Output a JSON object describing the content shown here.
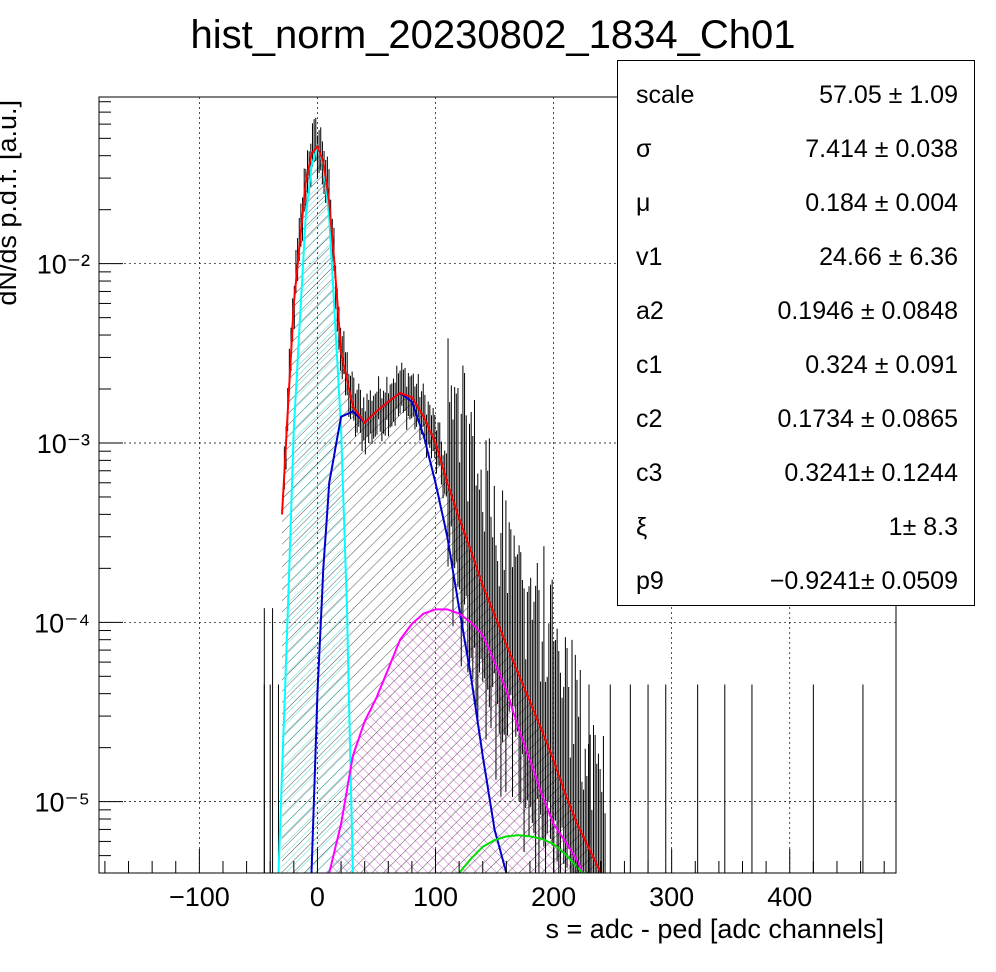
{
  "chart_data": {
    "type": "line",
    "title": "hist_norm_20230802_1834_Ch01",
    "xlabel": "s = adc - ped [adc channels]",
    "ylabel": "dN/ds p.d.f. [a.u.]",
    "xlim": [
      -185,
      490
    ],
    "ylim": [
      4e-06,
      0.085
    ],
    "y_log": true,
    "grid": true,
    "x_ticks": [
      -100,
      0,
      100,
      200,
      300,
      400
    ],
    "x_tick_labels": [
      "−100",
      "0",
      "100",
      "200",
      "300",
      "400"
    ],
    "y_ticks": [
      1e-05,
      0.0001,
      0.001,
      0.01
    ],
    "y_tick_labels": [
      "10⁻⁵",
      "10⁻⁴",
      "10⁻³",
      "10⁻²"
    ],
    "series": [
      {
        "color": "#ff0000",
        "x": [
          -30,
          -20,
          -10,
          -5,
          0,
          5,
          10,
          15,
          20,
          30,
          40,
          50,
          60,
          70,
          80,
          90,
          100,
          110,
          120,
          130,
          140,
          150,
          160,
          170,
          180,
          190,
          200,
          210,
          220,
          230,
          240
        ],
        "y": [
          0.0004,
          0.006,
          0.028,
          0.041,
          0.045,
          0.037,
          0.022,
          0.009,
          0.0032,
          0.0016,
          0.0013,
          0.0015,
          0.0017,
          0.0019,
          0.0018,
          0.0014,
          0.001,
          0.0006,
          0.00038,
          0.00025,
          0.00016,
          0.00011,
          7.5e-05,
          5.2e-05,
          3.6e-05,
          2.5e-05,
          1.7e-05,
          1.1e-05,
          7.5e-06,
          5.5e-06,
          4e-06
        ]
      },
      {
        "color": "#00ffff",
        "x": [
          -33,
          -25,
          -20,
          -10,
          -5,
          0,
          5,
          10,
          20,
          25,
          30
        ],
        "y": [
          4e-06,
          0.00012,
          0.0012,
          0.018,
          0.035,
          0.045,
          0.036,
          0.018,
          0.0012,
          0.00012,
          4e-06
        ]
      },
      {
        "color": "#0000cc",
        "x": [
          -5,
          0,
          5,
          10,
          20,
          30,
          40,
          50,
          60,
          70,
          80,
          90,
          100,
          110,
          120,
          130,
          140,
          150,
          160
        ],
        "y": [
          4e-06,
          4e-05,
          0.0002,
          0.0006,
          0.0014,
          0.0015,
          0.0013,
          0.0015,
          0.0017,
          0.0019,
          0.0017,
          0.0011,
          0.0006,
          0.0003,
          0.00012,
          5e-05,
          1.8e-05,
          7e-06,
          4e-06
        ]
      },
      {
        "color": "#ff00ff",
        "x": [
          10,
          20,
          30,
          40,
          50,
          60,
          70,
          80,
          90,
          100,
          110,
          120,
          130,
          140,
          150,
          160,
          170,
          180,
          190,
          200,
          210,
          220,
          225
        ],
        "y": [
          4e-06,
          7.5e-06,
          1.8e-05,
          2.8e-05,
          3.8e-05,
          5.5e-05,
          8e-05,
          9.8e-05,
          0.000112,
          0.000118,
          0.000118,
          0.000112,
          0.0001,
          8.5e-05,
          6e-05,
          4.2e-05,
          2.6e-05,
          1.7e-05,
          1.1e-05,
          7.5e-06,
          6e-06,
          4.7e-06,
          4e-06
        ]
      },
      {
        "color": "#00dd00",
        "x": [
          120,
          130,
          140,
          150,
          160,
          170,
          180,
          190,
          200,
          210,
          220,
          225
        ],
        "y": [
          4e-06,
          4.8e-06,
          5.6e-06,
          6.1e-06,
          6.4e-06,
          6.5e-06,
          6.4e-06,
          6.2e-06,
          5.8e-06,
          5.1e-06,
          4.3e-06,
          4e-06
        ]
      }
    ]
  },
  "stats": [
    {
      "name": "scale",
      "value": "57.05 ± 1.09"
    },
    {
      "name": "σ",
      "value": "7.414 ± 0.038"
    },
    {
      "name": "μ",
      "value": "0.184 ± 0.004"
    },
    {
      "name": "v1",
      "value": "24.66 ± 6.36"
    },
    {
      "name": "a2",
      "value": "0.1946 ± 0.0848"
    },
    {
      "name": "c1",
      "value": "0.324 ± 0.091"
    },
    {
      "name": "c2",
      "value": "0.1734 ± 0.0865"
    },
    {
      "name": "c3",
      "value": "0.3241± 0.1244"
    },
    {
      "name": "ξ",
      "value": "1± 8.3"
    },
    {
      "name": "p9",
      "value": "−0.9241± 0.0509"
    }
  ]
}
